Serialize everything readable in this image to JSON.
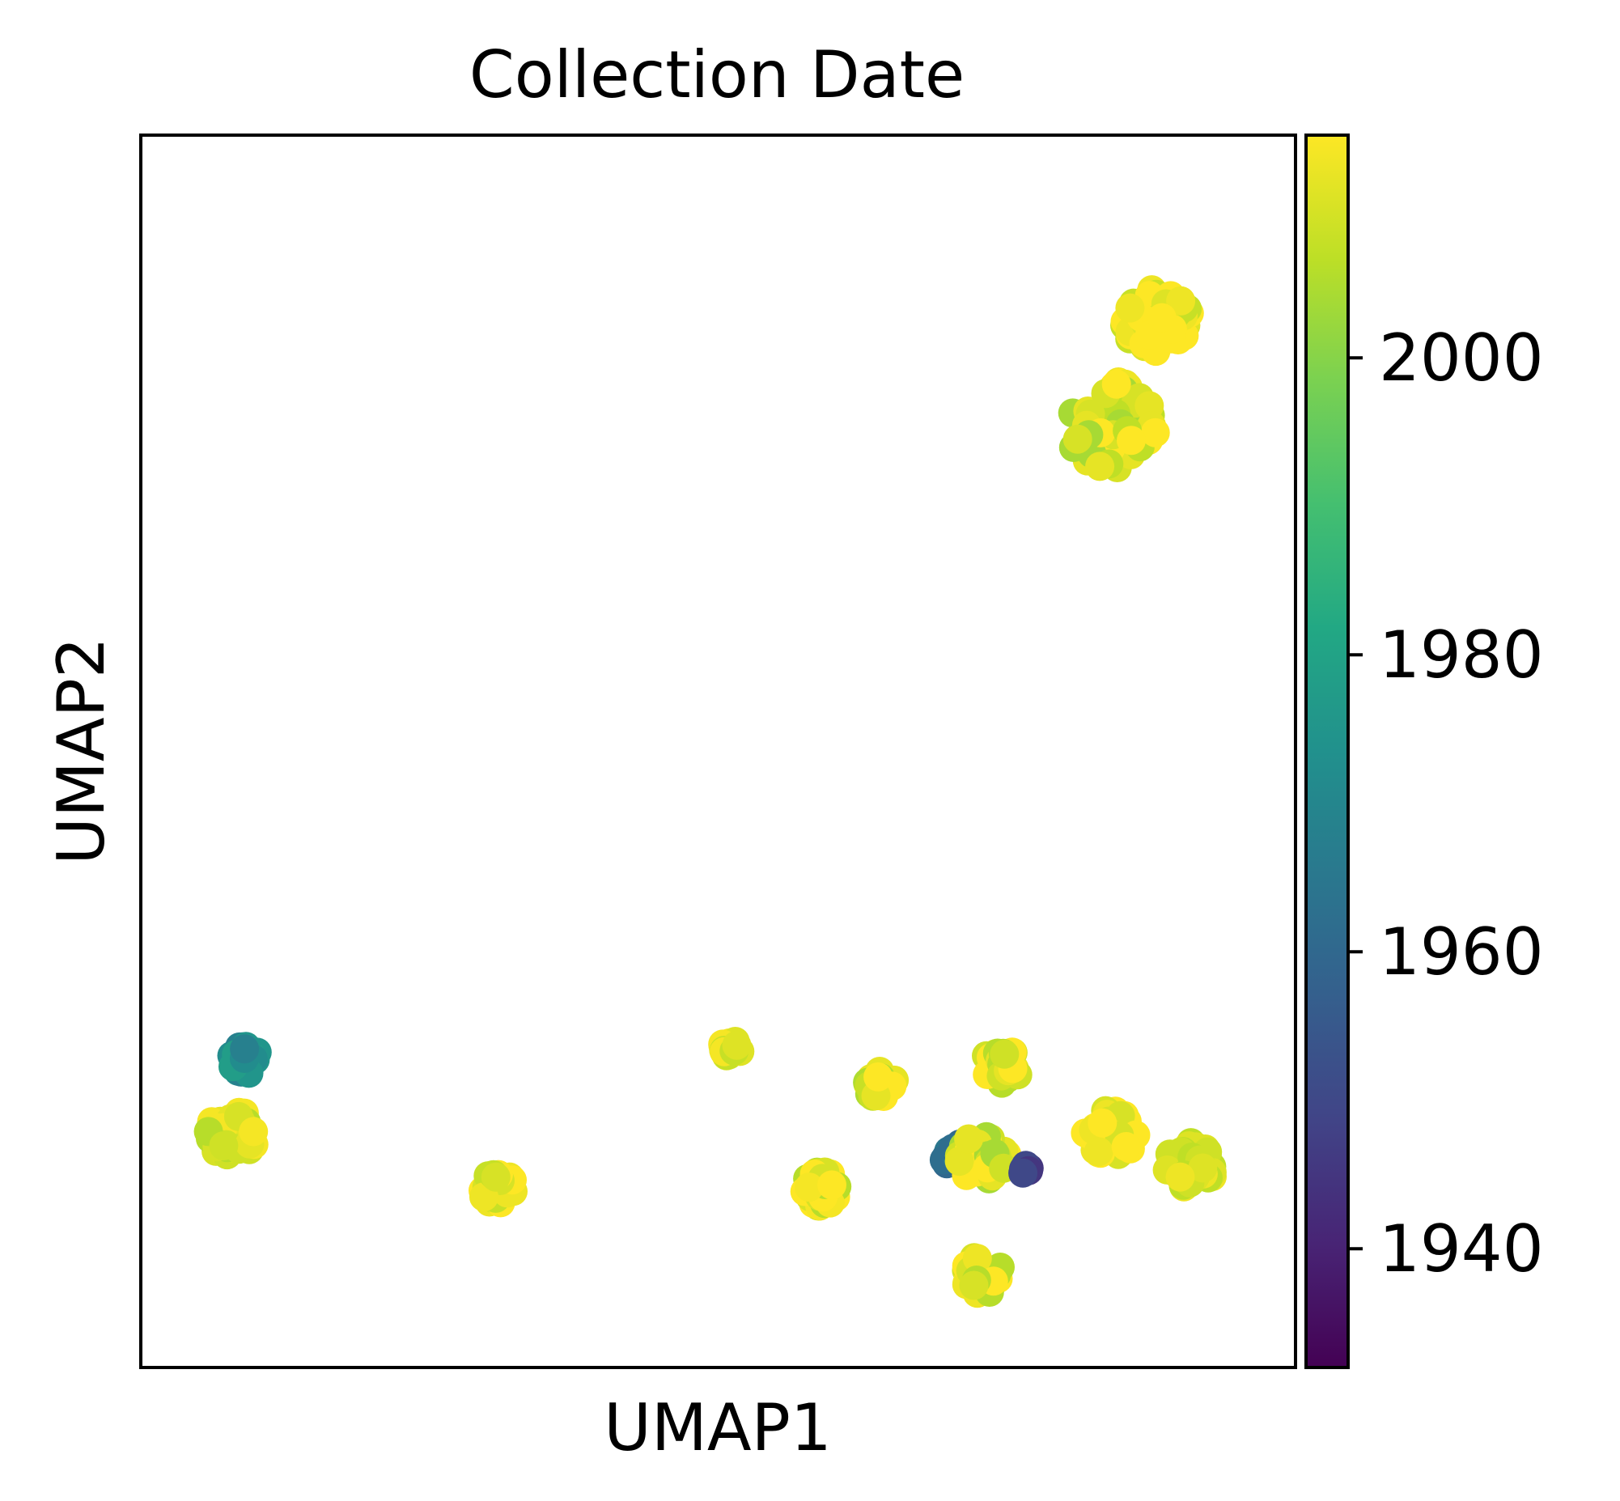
{
  "chart_data": {
    "type": "scatter",
    "title": "Collection Date",
    "xlabel": "UMAP1",
    "ylabel": "UMAP2",
    "xlim": [
      0,
      10
    ],
    "ylim": [
      0,
      10
    ],
    "grid": false,
    "colorbar": {
      "colormap": "viridis",
      "range": [
        1932,
        2015
      ],
      "ticks": [
        1940,
        1960,
        1980,
        2000
      ],
      "tick_labels": [
        "1940",
        "1960",
        "1980",
        "2000"
      ]
    },
    "clusters": [
      {
        "x": 0.8,
        "y": 1.9,
        "spread": 0.22,
        "n": 45,
        "values": [
          2006,
          2010,
          2012,
          2014,
          2009
        ]
      },
      {
        "x": 0.9,
        "y": 2.5,
        "spread": 0.13,
        "n": 18,
        "values": [
          1972,
          1968,
          1975,
          1978
        ]
      },
      {
        "x": 3.1,
        "y": 1.45,
        "spread": 0.15,
        "n": 30,
        "values": [
          2008,
          2010,
          2013,
          2015
        ]
      },
      {
        "x": 5.1,
        "y": 2.6,
        "spread": 0.1,
        "n": 14,
        "values": [
          2008,
          2011,
          2014
        ]
      },
      {
        "x": 5.9,
        "y": 1.45,
        "spread": 0.16,
        "n": 28,
        "values": [
          2006,
          2010,
          2014,
          2015
        ]
      },
      {
        "x": 6.4,
        "y": 2.3,
        "spread": 0.13,
        "n": 20,
        "values": [
          2005,
          2008,
          2012,
          2015
        ]
      },
      {
        "x": 7.0,
        "y": 1.75,
        "spread": 0.12,
        "n": 14,
        "values": [
          1960,
          1962,
          1965
        ]
      },
      {
        "x": 7.3,
        "y": 1.7,
        "spread": 0.22,
        "n": 35,
        "values": [
          2004,
          2009,
          2012,
          2015
        ]
      },
      {
        "x": 7.7,
        "y": 1.6,
        "spread": 0.07,
        "n": 6,
        "values": [
          1945,
          1950
        ]
      },
      {
        "x": 7.45,
        "y": 2.45,
        "spread": 0.17,
        "n": 22,
        "values": [
          2006,
          2009,
          2012,
          2015
        ]
      },
      {
        "x": 7.3,
        "y": 0.75,
        "spread": 0.18,
        "n": 30,
        "values": [
          2006,
          2010,
          2013,
          2015
        ]
      },
      {
        "x": 8.4,
        "y": 1.9,
        "spread": 0.22,
        "n": 40,
        "values": [
          2010,
          2013,
          2015,
          2015
        ]
      },
      {
        "x": 9.1,
        "y": 1.65,
        "spread": 0.22,
        "n": 40,
        "values": [
          2007,
          2009,
          2011,
          2013
        ]
      },
      {
        "x": 8.8,
        "y": 8.5,
        "spread": 0.3,
        "n": 60,
        "values": [
          2008,
          2011,
          2013,
          2015,
          2015
        ]
      },
      {
        "x": 8.5,
        "y": 7.9,
        "spread": 0.12,
        "n": 14,
        "values": [
          2013,
          2015
        ]
      },
      {
        "x": 8.4,
        "y": 7.65,
        "spread": 0.4,
        "n": 45,
        "values": [
          2004,
          2007,
          2010,
          2012,
          2015
        ]
      }
    ]
  }
}
